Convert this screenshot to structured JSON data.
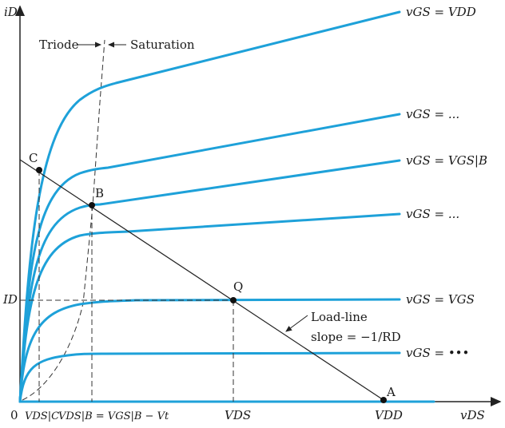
{
  "axes": {
    "y_label": "iD",
    "x_label": "vDS",
    "origin": "0"
  },
  "regions": {
    "triode": "Triode",
    "saturation": "Saturation"
  },
  "curves": [
    {
      "label": "vGS = VDD"
    },
    {
      "label": "vGS = ..."
    },
    {
      "label": "vGS = VGS|B"
    },
    {
      "label": "vGS = ..."
    },
    {
      "label": "vGS = VGS"
    },
    {
      "label": "vGS = •••"
    }
  ],
  "points": {
    "A": "A",
    "B": "B",
    "C": "C",
    "Q": "Q"
  },
  "y_marker": "ID",
  "x_markers": {
    "vds_c": "VDS|C",
    "vds_b": "VDS|B = VGS|B − Vt",
    "vds": "VDS",
    "vdd": "VDD"
  },
  "load_line": {
    "title": "Load-line",
    "slope": "slope = −1/RD"
  },
  "colors": {
    "curve": "#1ea1d9",
    "ink": "#222222"
  }
}
